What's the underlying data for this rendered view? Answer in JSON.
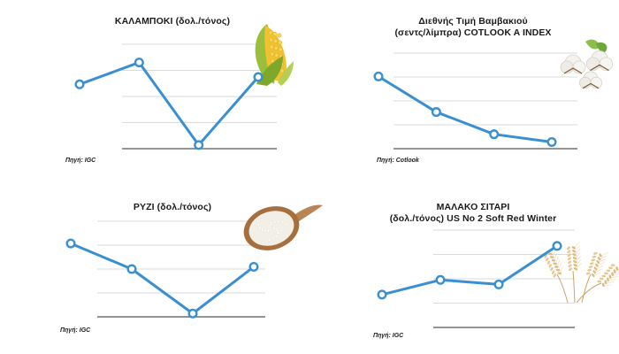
{
  "style": {
    "line_color": "#3a8fd1",
    "marker_fill": "#ffffff",
    "grid_color": "#cfcfcf",
    "baseline_color": "#555555"
  },
  "chart_data": [
    {
      "id": "corn",
      "type": "line",
      "title": "ΚΑΛΑΜΠΟΚΙ (δολ./τόνος)",
      "subtitle": "",
      "source": "Πηγή: IGC",
      "x": [
        1,
        2,
        3,
        4
      ],
      "values": [
        2.65,
        3.55,
        0.15,
        2.95
      ],
      "ylim": [
        0,
        4.3
      ],
      "grid_lines": 4,
      "image": "corn-cob"
    },
    {
      "id": "cotton",
      "type": "line",
      "title": "Διεθνής Τιμή Βαμβακιού",
      "subtitle": "(σεντς/λίμπρα) COTLOOK A INDEX",
      "source": "Πηγή: Cotlook",
      "x": [
        1,
        2,
        3,
        4
      ],
      "values": [
        3.25,
        1.65,
        0.65,
        0.3
      ],
      "ylim": [
        0,
        4.3
      ],
      "grid_lines": 4,
      "image": "cotton-bolls"
    },
    {
      "id": "rice",
      "type": "line",
      "title": "ΡΥΖΙ (δολ./τόνος)",
      "subtitle": "",
      "source": "Πηγή: IGC",
      "x": [
        1,
        2,
        3,
        4
      ],
      "values": [
        3.3,
        2.15,
        0.15,
        2.25
      ],
      "ylim": [
        0,
        4.3
      ],
      "grid_lines": 4,
      "image": "rice-spoon"
    },
    {
      "id": "wheat",
      "type": "line",
      "title": "ΜΑΛΑΚΟ ΣΙΤΑΡΙ",
      "subtitle": "(δολ./τόνος) US No 2 Soft Red Winter",
      "source": "Πηγή: IGC",
      "x": [
        1,
        2,
        3,
        4
      ],
      "values": [
        1.45,
        2.1,
        1.9,
        3.6
      ],
      "ylim": [
        0,
        4.3
      ],
      "grid_lines": 4,
      "image": "wheat-ears"
    }
  ]
}
